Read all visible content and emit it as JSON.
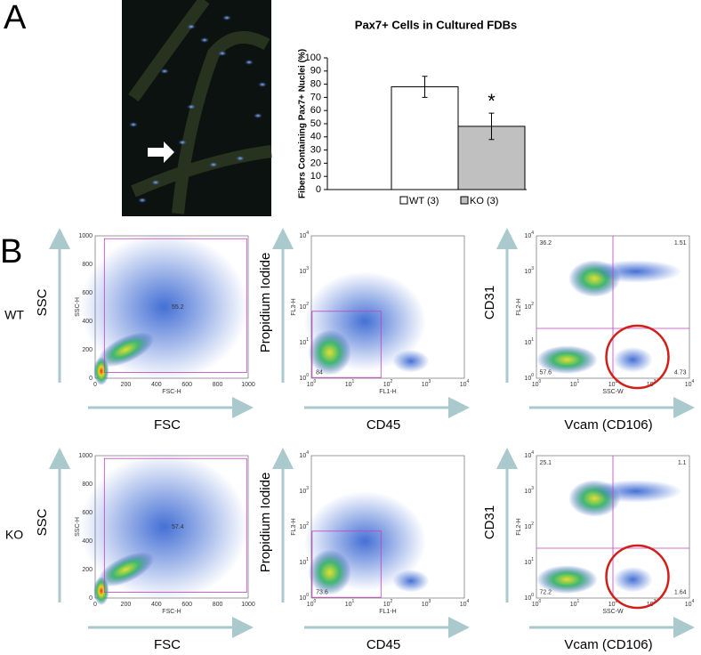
{
  "panel_a": {
    "label": "A"
  },
  "chart_data": {
    "type": "bar",
    "title": "Pax7+ Cells in Cultured FDBs",
    "y_label": "Fibers Containing Pax7+ Nuclei (%)",
    "categories": [
      null
    ],
    "series": [
      {
        "name": "WT (3)",
        "color": "#ffffff",
        "values": [
          78
        ],
        "errors": [
          8
        ]
      },
      {
        "name": "KO (3)",
        "color": "#c0c0c0",
        "values": [
          48
        ],
        "errors": [
          10
        ]
      }
    ],
    "annotations": [
      "*"
    ],
    "ylim": [
      0,
      100
    ],
    "yticks": [
      0,
      10,
      20,
      30,
      40,
      50,
      60,
      70,
      80,
      90,
      100
    ],
    "legend": "bottom"
  },
  "panel_b": {
    "label": "B",
    "linear_ticks": [
      0,
      200,
      400,
      600,
      800,
      1000
    ],
    "log_base": "10",
    "log_exponents": [
      "0",
      "1",
      "2",
      "3",
      "4"
    ],
    "rows": [
      {
        "label": "WT",
        "plots": [
          {
            "y_label": "SSC",
            "x_label": "FSC",
            "y_param": "SSC-H",
            "x_param": "FSC-H",
            "gates": [
              "55.2"
            ]
          },
          {
            "y_label": "Propidium Iodide",
            "x_label": "CD45",
            "y_param": "FL3-H",
            "x_param": "FL1-H",
            "gates": [
              "84"
            ]
          },
          {
            "y_label": "CD31",
            "x_label": "Vcam (CD106)",
            "y_param": "FL2-H",
            "x_param": "SSC-W",
            "gates": [
              "36.2",
              "1.51",
              "57.6",
              "4.73"
            ]
          }
        ]
      },
      {
        "label": "KO",
        "plots": [
          {
            "y_label": "SSC",
            "x_label": "FSC",
            "y_param": "SSC-H",
            "x_param": "FSC-H",
            "gates": [
              "57.4"
            ]
          },
          {
            "y_label": "Propidium Iodide",
            "x_label": "CD45",
            "y_param": "FL3-H",
            "x_param": "FL1-H",
            "gates": [
              "73.6"
            ]
          },
          {
            "y_label": "CD31",
            "x_label": "Vcam (CD106)",
            "y_param": "FL2-H",
            "x_param": "SSC-W",
            "gates": [
              "25.1",
              "1.1",
              "72.2",
              "1.64"
            ]
          }
        ]
      }
    ]
  }
}
